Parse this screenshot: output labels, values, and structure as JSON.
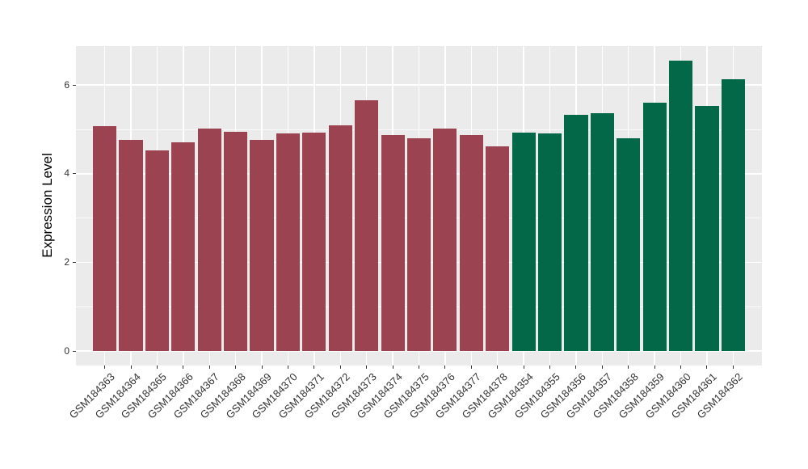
{
  "figure": {
    "background_color": "#FFFFFF",
    "panel_background_color": "#EBEBEB",
    "gridline_color": "#FFFFFF",
    "axis_text_color": "#333333"
  },
  "chart_data": {
    "type": "bar",
    "title": "",
    "xlabel": "",
    "ylabel": "Expression Level",
    "ylim": [
      0,
      6.88
    ],
    "yticks_major": [
      0,
      2,
      4,
      6
    ],
    "ytick_labels": [
      "0",
      "2",
      "4",
      "6"
    ],
    "yticks_minor": [
      1,
      3,
      5
    ],
    "grid": true,
    "legend": false,
    "bar_width_fraction": 0.9,
    "categories": [
      "GSM184363",
      "GSM184364",
      "GSM184365",
      "GSM184366",
      "GSM184367",
      "GSM184368",
      "GSM184369",
      "GSM184370",
      "GSM184371",
      "GSM184372",
      "GSM184373",
      "GSM184374",
      "GSM184375",
      "GSM184376",
      "GSM184377",
      "GSM184378",
      "GSM184354",
      "GSM184355",
      "GSM184356",
      "GSM184357",
      "GSM184358",
      "GSM184359",
      "GSM184360",
      "GSM184361",
      "GSM184362"
    ],
    "values": [
      5.07,
      4.76,
      4.53,
      4.7,
      5.01,
      4.94,
      4.77,
      4.9,
      4.93,
      5.1,
      5.65,
      4.88,
      4.8,
      5.01,
      4.88,
      4.61,
      4.92,
      4.9,
      5.32,
      5.37,
      4.8,
      5.6,
      6.55,
      5.53,
      6.13
    ],
    "series": [
      {
        "color": "#9B4350",
        "start_index": 0,
        "count": 16
      },
      {
        "color": "#026847",
        "start_index": 16,
        "count": 9
      }
    ]
  }
}
